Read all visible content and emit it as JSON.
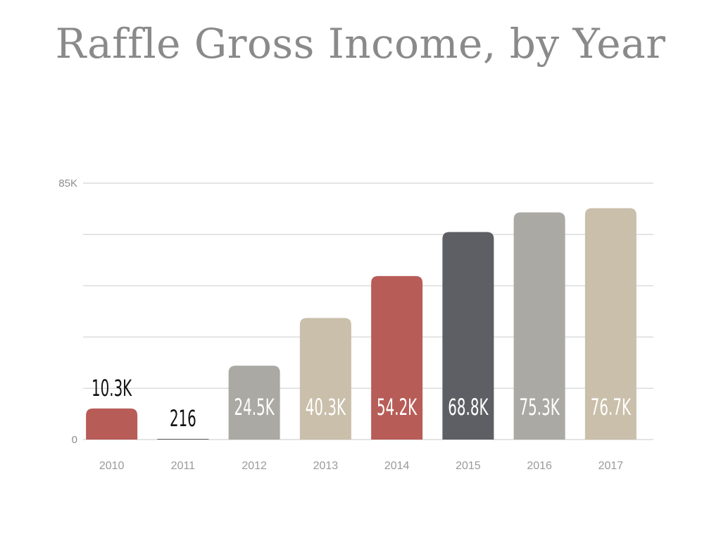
{
  "chart_data": {
    "type": "bar",
    "title": "Raffle Gross Income, by Year",
    "xlabel": "",
    "ylabel": "",
    "categories": [
      "2010",
      "2011",
      "2012",
      "2013",
      "2014",
      "2015",
      "2016",
      "2017"
    ],
    "values": [
      10300,
      216,
      24500,
      40300,
      54200,
      68800,
      75300,
      76700
    ],
    "data_labels": [
      "10.3K",
      "216",
      "24.5K",
      "40.3K",
      "54.2K",
      "68.8K",
      "75.3K",
      "76.7K"
    ],
    "colors": [
      "#b85c58",
      "#5e5f64",
      "#aaa9a4",
      "#c9bfaa",
      "#b85c58",
      "#5e5f64",
      "#aaa9a4",
      "#c9bfaa"
    ],
    "ylim": [
      0,
      85000
    ],
    "y_tick_labels": [
      {
        "value": 0,
        "label": "0"
      },
      {
        "value": 85000,
        "label": "85K"
      }
    ],
    "gridlines": [
      0,
      17000,
      34000,
      51000,
      68000,
      85000
    ],
    "grid": true,
    "legend": "none"
  }
}
